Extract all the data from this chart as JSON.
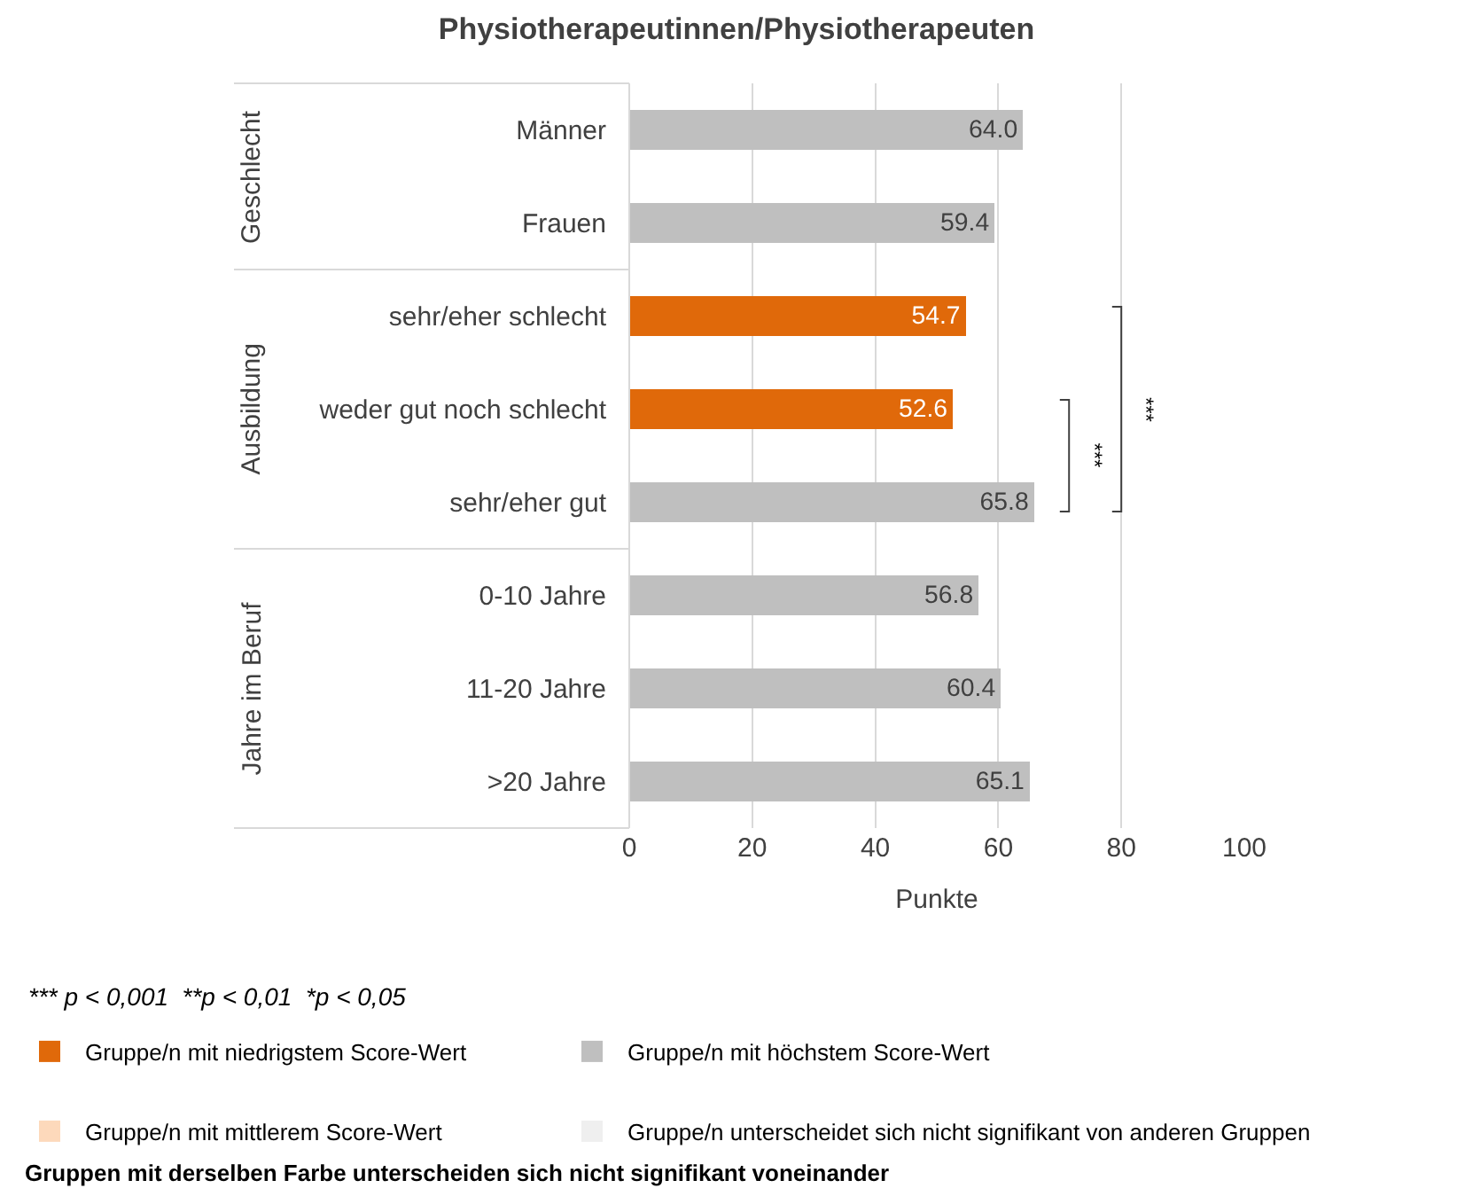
{
  "chart_data": {
    "type": "bar",
    "orientation": "horizontal",
    "stacked": true,
    "title": "Physiotherapeutinnen/Physiotherapeuten",
    "xlabel": "Punkte",
    "categories": [
      "Männer",
      "Frauen",
      "sehr/eher schlecht",
      "weder gut noch schlecht",
      "sehr/eher gut",
      "0-10 Jahre",
      "11-20 Jahre",
      ">20 Jahre"
    ],
    "series": [
      {
        "name": "Gruppe/n mit niedrigstem Score-Wert",
        "color": "#e0690a",
        "values": [
          null,
          null,
          54.7,
          52.6,
          null,
          null,
          null,
          null
        ],
        "value_labels": [
          null,
          null,
          "54.7",
          "52.6",
          null,
          null,
          null,
          null
        ]
      },
      {
        "name": "Gruppe/n mit höchstem Score-Wert",
        "color": "#bfbfbf",
        "values": [
          64.0,
          59.4,
          null,
          null,
          65.8,
          56.8,
          60.4,
          65.1
        ],
        "value_labels": [
          "64.0",
          "59.4",
          null,
          null,
          "65.8",
          "56.8",
          "60.4",
          "65.1"
        ]
      },
      {
        "name": "Gruppe/n mit mittlerem Score-Wert",
        "color": "#fdd9bb",
        "values": [
          null,
          null,
          null,
          null,
          null,
          null,
          null,
          null
        ]
      },
      {
        "name": "Gruppe/n unterscheidet sich nicht signifikant von anderen Gruppen",
        "color": "#efefef",
        "values": [
          null,
          null,
          null,
          null,
          null,
          null,
          null,
          null
        ]
      }
    ],
    "xlim": [
      0,
      100
    ],
    "xticks": [
      0,
      20,
      40,
      60,
      80,
      100
    ],
    "grid": "x",
    "legend": "bottom",
    "annotations": [
      "Geschlecht",
      "Ausbildung",
      "Jahre im Beruf",
      "***",
      "***",
      "*** p < 0,001  **p < 0,01  *p < 0,05",
      "Gruppen mit derselben Farbe unterscheiden sich nicht signifikant voneinander"
    ]
  }
}
